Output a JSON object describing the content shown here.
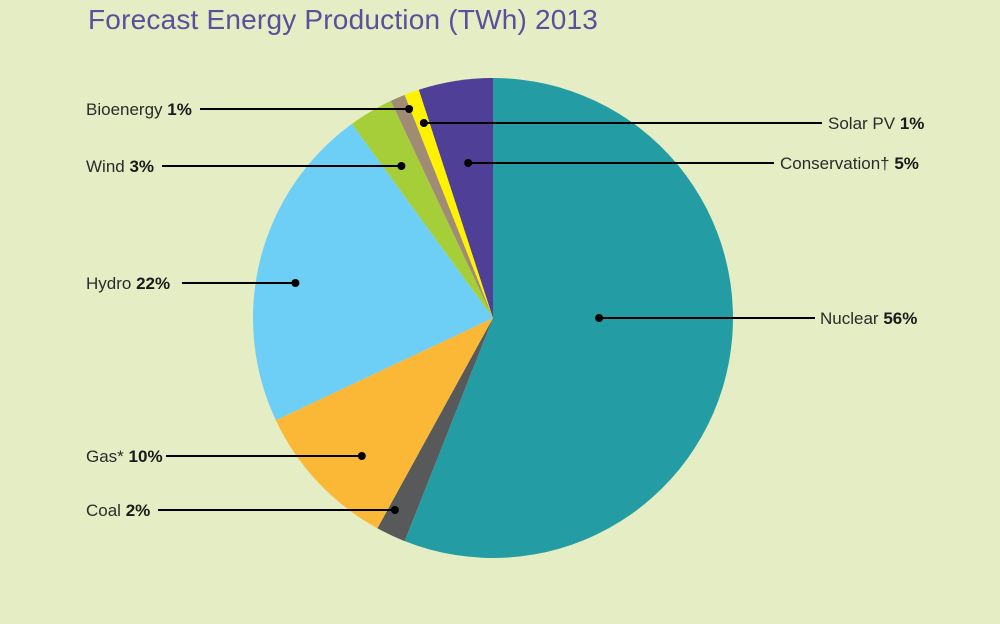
{
  "chart_data": {
    "type": "pie",
    "title": "Forecast Energy Production (TWh) 2013",
    "slices": [
      {
        "label": "Nuclear",
        "value": 56,
        "display": "56%",
        "color": "#239da3",
        "side": "right"
      },
      {
        "label": "Coal",
        "value": 2,
        "display": "2%",
        "color": "#58595b",
        "side": "left"
      },
      {
        "label": "Gas*",
        "value": 10,
        "display": "10%",
        "color": "#fbb836",
        "side": "left"
      },
      {
        "label": "Hydro",
        "value": 22,
        "display": "22%",
        "color": "#6dcff6",
        "side": "left"
      },
      {
        "label": "Wind",
        "value": 3,
        "display": "3%",
        "color": "#a6ce39",
        "side": "left"
      },
      {
        "label": "Bioenergy",
        "value": 1,
        "display": "1%",
        "color": "#a08c74",
        "side": "left"
      },
      {
        "label": "Solar PV",
        "value": 1,
        "display": "1%",
        "color": "#fff200",
        "side": "right"
      },
      {
        "label": "Conservation†",
        "value": 5,
        "display": "5%",
        "color": "#4f3f96",
        "side": "right"
      }
    ]
  }
}
